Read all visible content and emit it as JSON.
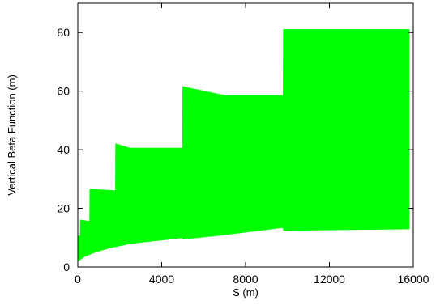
{
  "chart_data": {
    "type": "area",
    "title": "",
    "xlabel": "S (m)",
    "ylabel": "Vertical Beta Function (m)",
    "xlim": [
      0,
      16000
    ],
    "ylim": [
      0,
      90
    ],
    "x_ticks": [
      0,
      4000,
      8000,
      12000,
      16000
    ],
    "y_ticks": [
      0,
      20,
      40,
      60,
      80
    ],
    "x_tick_labels": [
      "0",
      "4000",
      "8000",
      "12000",
      "16000"
    ],
    "y_tick_labels": [
      "0",
      "20",
      "40",
      "60",
      "80"
    ],
    "grid": false,
    "legend": "none",
    "color": "#00ff00",
    "series": [
      {
        "upper": [
          [
            0,
            10.5
          ],
          [
            120,
            10.5
          ],
          [
            130,
            16
          ],
          [
            570,
            15.5
          ],
          [
            580,
            26.5
          ],
          [
            1800,
            26
          ],
          [
            1810,
            42
          ],
          [
            2500,
            40.5
          ],
          [
            5000,
            40.5
          ],
          [
            5010,
            61.5
          ],
          [
            7000,
            58.5
          ],
          [
            9800,
            58.5
          ],
          [
            9810,
            81
          ],
          [
            15800,
            81
          ]
        ],
        "lower": [
          [
            0,
            2
          ],
          [
            300,
            3.5
          ],
          [
            800,
            5
          ],
          [
            1500,
            6.5
          ],
          [
            2500,
            8
          ],
          [
            5000,
            10
          ],
          [
            5010,
            9.5
          ],
          [
            7000,
            11
          ],
          [
            9800,
            13.5
          ],
          [
            9810,
            12.5
          ],
          [
            15800,
            13
          ]
        ]
      }
    ]
  }
}
